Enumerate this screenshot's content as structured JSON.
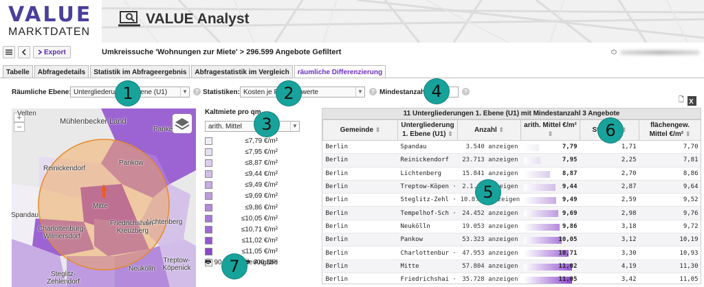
{
  "brand": {
    "value": "VALUE",
    "marktdaten": "MARKTDATEN",
    "analyst": "VALUE Analyst"
  },
  "toolbar": {
    "export_label": "Export",
    "title": "Umkreissuche 'Wohnungen zur Miete' > 296.599 Angebote Gefiltert"
  },
  "tabs": [
    {
      "label": "Tabelle",
      "active": false
    },
    {
      "label": "Abfragedetails",
      "active": false
    },
    {
      "label": "Statistik im Abfrageergebnis",
      "active": false
    },
    {
      "label": "Abfragestatistik im Vergleich",
      "active": false
    },
    {
      "label": "räumliche Differenzierung",
      "active": true
    }
  ],
  "filters": {
    "ebene_label": "Räumliche Ebene:",
    "ebene_value": "Untergliederung 1. Ebene (U1)",
    "statistik_label": "Statistiken:",
    "statistik_value": "Kosten je F... Mittelwerte",
    "mindest_label": "Mindestanzahl:"
  },
  "badges": [
    "1",
    "2",
    "3",
    "4",
    "5",
    "6",
    "7"
  ],
  "map": {
    "labels": [
      "Mühlenbecker Land",
      "Pankow",
      "Reinickendorf",
      "Lichtenberg",
      "Mitte",
      "Spandau",
      "Charlottenburg-Wilmersdorf",
      "Friedrichshain-Kreuzberg",
      "Neukölln",
      "Treptow-Köpenick",
      "Steglitz-Zehlendorf",
      "Velten",
      "Panke"
    ]
  },
  "legend": {
    "title": "Kaltmiete pro qm",
    "select": "arith. Mittel",
    "rows": [
      {
        "label": "≤7,79 €/m²",
        "color": "#efeef4"
      },
      {
        "label": "≤7,95 €/m²",
        "color": "#e6dff0"
      },
      {
        "label": "≤8,87 €/m²",
        "color": "#dccdec"
      },
      {
        "label": "≤9,44 €/m²",
        "color": "#d2bde8"
      },
      {
        "label": "≤9,49 €/m²",
        "color": "#c8ace4"
      },
      {
        "label": "≤9,69 €/m²",
        "color": "#be9be0"
      },
      {
        "label": "≤9,86 €/m²",
        "color": "#b48adc"
      },
      {
        "label": "≤10,05 €/m²",
        "color": "#a979d8"
      },
      {
        "label": "≤10,71 €/m²",
        "color": "#9f68d4"
      },
      {
        "label": "≤11,02 €/m²",
        "color": "#9557d0"
      },
      {
        "label": "≤11,05 €/m²",
        "color": "#8b46cc"
      },
      {
        "label": "Keine Angabe",
        "color": "#ffffff"
      }
    ],
    "print_dpi_a": "90",
    "print_dpi_b": "600 DPI"
  },
  "table": {
    "caption": "11 Untergliederungen 1. Ebene (U1) mit Mindestanzahl 3 Angebote",
    "headers": [
      "Gemeinde",
      "Untergliederung 1. Ebene (U1)",
      "Anzahl",
      "arith. Mittel €/m²",
      "St.-Abw.",
      "flächengew. Mittel €/m²"
    ],
    "rows": [
      {
        "gemeinde": "Berlin",
        "u1": "Spandau",
        "anzahl": "3.540 anzeigen",
        "mittel": "7,79",
        "mittel_num": 7.79,
        "stabw": "1,71",
        "flaeche": "7,70",
        "color": "#efeef4"
      },
      {
        "gemeinde": "Berlin",
        "u1": "Reinickendorf",
        "anzahl": "23.713 anzeigen",
        "mittel": "7,95",
        "mittel_num": 7.95,
        "stabw": "2,25",
        "flaeche": "7,81",
        "color": "#e6dff0"
      },
      {
        "gemeinde": "Berlin",
        "u1": "Lichtenberg",
        "anzahl": "15.841 anzeigen",
        "mittel": "8,87",
        "mittel_num": 8.87,
        "stabw": "2,70",
        "flaeche": "8,86",
        "color": "#dccdec"
      },
      {
        "gemeinde": "Berlin",
        "u1": "Treptow-Köpen ···",
        "anzahl": "2.1... anzeigen",
        "mittel": "9,44",
        "mittel_num": 9.44,
        "stabw": "2,87",
        "flaeche": "9,64",
        "color": "#d2bde8"
      },
      {
        "gemeinde": "Berlin",
        "u1": "Steglitz-Zehl ···",
        "anzahl": "10.8... anzeigen",
        "mittel": "9,49",
        "mittel_num": 9.49,
        "stabw": "2,59",
        "flaeche": "9,52",
        "color": "#c8ace4"
      },
      {
        "gemeinde": "Berlin",
        "u1": "Tempelhof-Sch ···",
        "anzahl": "24.452 anzeigen",
        "mittel": "9,69",
        "mittel_num": 9.69,
        "stabw": "2,98",
        "flaeche": "9,76",
        "color": "#be9be0"
      },
      {
        "gemeinde": "Berlin",
        "u1": "Neukölln",
        "anzahl": "19.053 anzeigen",
        "mittel": "9,86",
        "mittel_num": 9.86,
        "stabw": "3,18",
        "flaeche": "9,72",
        "color": "#b48adc"
      },
      {
        "gemeinde": "Berlin",
        "u1": "Pankow",
        "anzahl": "53.323 anzeigen",
        "mittel": "10,05",
        "mittel_num": 10.05,
        "stabw": "3,12",
        "flaeche": "10,19",
        "color": "#a979d8"
      },
      {
        "gemeinde": "Berlin",
        "u1": "Charlottenbur ···",
        "anzahl": "47.953 anzeigen",
        "mittel": "10,71",
        "mittel_num": 10.71,
        "stabw": "3,30",
        "flaeche": "10,93",
        "color": "#9f68d4"
      },
      {
        "gemeinde": "Berlin",
        "u1": "Mitte",
        "anzahl": "57.804 anzeigen",
        "mittel": "11,02",
        "mittel_num": 11.02,
        "stabw": "4,19",
        "flaeche": "11,30",
        "color": "#9557d0"
      },
      {
        "gemeinde": "Berlin",
        "u1": "Friedrichshai ···",
        "anzahl": "35.728 anzeigen",
        "mittel": "11,05",
        "mittel_num": 11.05,
        "stabw": "3,42",
        "flaeche": "11,05",
        "color": "#8b46cc"
      }
    ]
  }
}
